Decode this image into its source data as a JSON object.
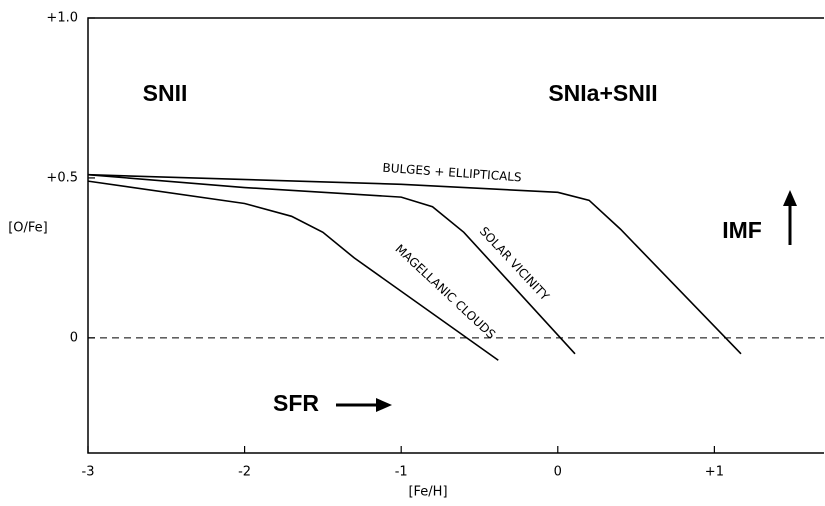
{
  "chart_data": {
    "type": "line",
    "x_label": "[Fe/H]",
    "y_label": "[O/Fe]",
    "xlim": [
      -3,
      1.7
    ],
    "ylim": [
      -0.36,
      1.0
    ],
    "xticks": [
      -3,
      -2,
      -1,
      0,
      {
        "value": 1,
        "label": "+1"
      }
    ],
    "yticks": [
      0,
      {
        "value": 0.5,
        "label": "+0.5"
      },
      {
        "value": 1,
        "label": "+1.0"
      }
    ],
    "hline": 0,
    "color": "#000000",
    "series": [
      {
        "name": "BULGES + ELLIPTICALS",
        "x": [
          -3,
          -1,
          0,
          0.2,
          0.4,
          1.17
        ],
        "values": [
          0.51,
          0.48,
          0.455,
          0.43,
          0.34,
          -0.05
        ]
      },
      {
        "name": "SOLAR VICINITY",
        "x": [
          -3,
          -2,
          -1,
          -0.8,
          -0.6,
          0.11
        ],
        "values": [
          0.51,
          0.47,
          0.44,
          0.41,
          0.33,
          -0.05
        ]
      },
      {
        "name": "MAGELLANIC CLOUDS",
        "x": [
          -3,
          -2,
          -1.7,
          -1.5,
          -1.3,
          -0.38
        ],
        "values": [
          0.49,
          0.42,
          0.38,
          0.33,
          0.25,
          -0.07
        ]
      }
    ],
    "annotations": [
      "SNII",
      "SNIa+SNII",
      "IMF",
      "SFR"
    ]
  }
}
